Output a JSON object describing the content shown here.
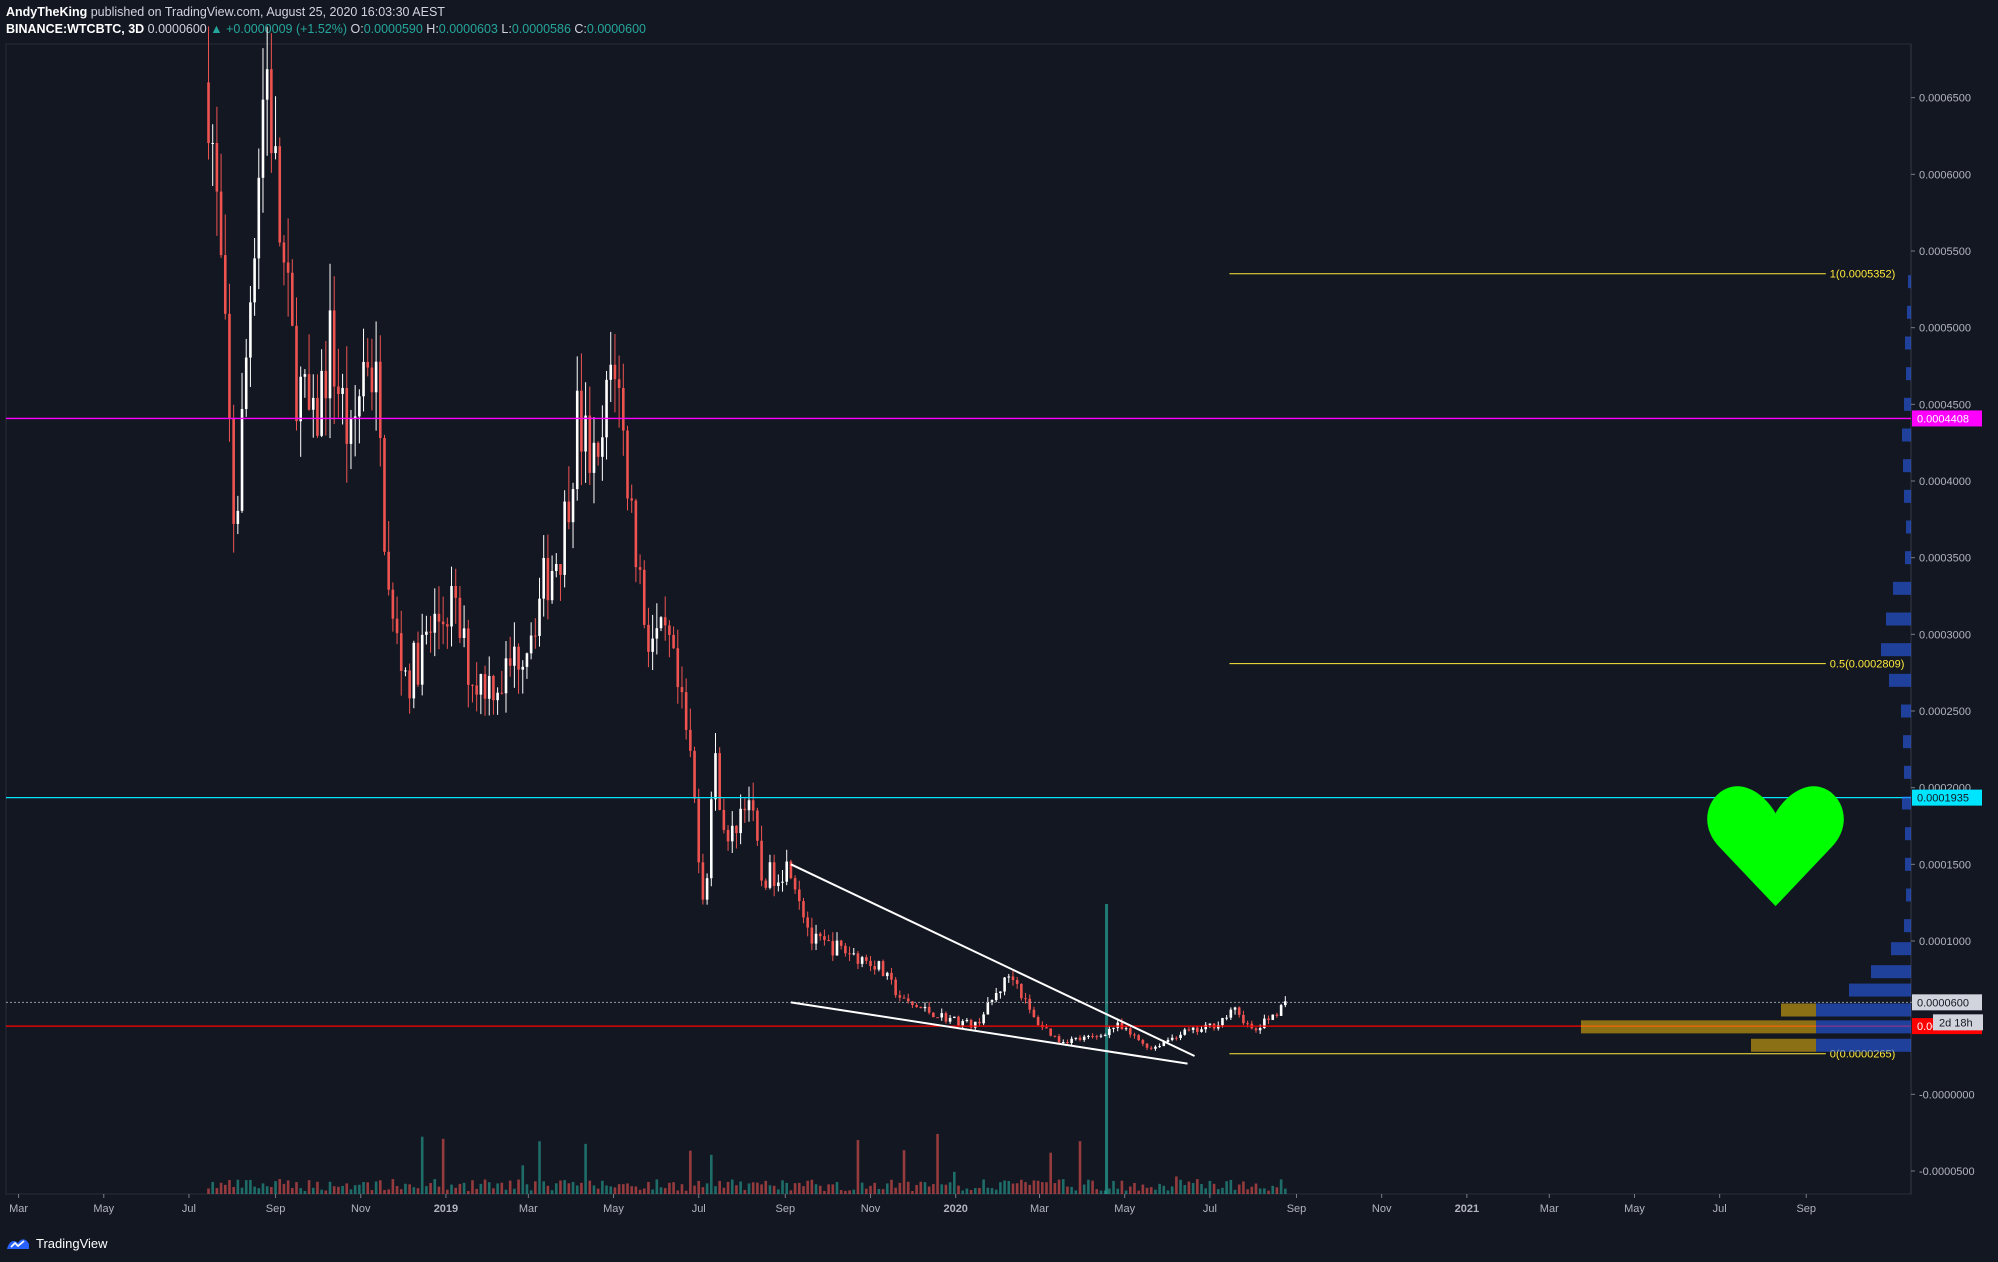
{
  "header": {
    "author": "AndyTheKing",
    "published": "published on TradingView.com, August 25, 2020 16:03:30 AEST",
    "symbol": "BINANCE:WTCBTC, 3D",
    "last": "0.0000600",
    "change": "▲ +0.0000009 (+1.52%)",
    "o_label": "O:",
    "o_value": "0.0000590",
    "h_label": "H:",
    "h_value": "0.0000603",
    "l_label": "L:",
    "l_value": "0.0000586",
    "c_label": "C:",
    "c_value": "0.0000600"
  },
  "footer": {
    "brand": "TradingView",
    "logo_icon": "tradingview-logo-icon"
  },
  "colors": {
    "background": "#131722",
    "up": "#ffffff",
    "down": "#ef5350",
    "volume_up": "#26a69a",
    "volume_down": "#ef5350",
    "magenta_level": "#ff00ff",
    "cyan_level": "#00e5ff",
    "red_level": "#ff0000",
    "fib": "#ffeb3b",
    "heart": "#00ff00"
  },
  "chart_data": {
    "type": "candlestick",
    "title": "",
    "xlabel": "",
    "ylabel": "",
    "x_ticks": [
      "Mar",
      "May",
      "Jul",
      "Sep",
      "Nov",
      "2019",
      "Mar",
      "May",
      "Jul",
      "Sep",
      "Nov",
      "2020",
      "Mar",
      "May",
      "Jul",
      "Sep",
      "Nov",
      "2021",
      "Mar",
      "May",
      "Jul",
      "Sep"
    ],
    "y_ticks": [
      "0.0006500",
      "0.0006000",
      "0.0005500",
      "0.0005000",
      "0.0004500",
      "0.0004000",
      "0.0003500",
      "0.0003000",
      "0.0002500",
      "0.0002000",
      "0.0001500",
      "0.0001000",
      "0.0000600",
      "-0.0000000",
      "-0.0000500"
    ],
    "ylim": [
      -6.5e-05,
      0.000685
    ],
    "price_path": [
      [
        "2018-07-15",
        0.00066
      ],
      [
        "2018-07-25",
        0.00052
      ],
      [
        "2018-08-03",
        0.00036
      ],
      [
        "2018-08-15",
        0.00054
      ],
      [
        "2018-08-25",
        0.00068
      ],
      [
        "2018-09-05",
        0.00055
      ],
      [
        "2018-09-15",
        0.00047
      ],
      [
        "2018-09-28",
        0.00043
      ],
      [
        "2018-10-10",
        0.00049
      ],
      [
        "2018-10-25",
        0.00042
      ],
      [
        "2018-11-05",
        0.00049
      ],
      [
        "2018-11-12",
        0.00046
      ],
      [
        "2018-11-22",
        0.00031
      ],
      [
        "2018-12-05",
        0.00027
      ],
      [
        "2018-12-20",
        0.0003
      ],
      [
        "2019-01-05",
        0.00032
      ],
      [
        "2019-01-20",
        0.00027
      ],
      [
        "2019-02-10",
        0.00027
      ],
      [
        "2019-03-01",
        0.0003
      ],
      [
        "2019-03-15",
        0.00034
      ],
      [
        "2019-03-25",
        0.00036
      ],
      [
        "2019-04-05",
        0.00044
      ],
      [
        "2019-04-20",
        0.0004
      ],
      [
        "2019-05-01",
        0.00049
      ],
      [
        "2019-05-10",
        0.00041
      ],
      [
        "2019-05-25",
        0.0003
      ],
      [
        "2019-06-10",
        0.00029
      ],
      [
        "2019-06-25",
        0.00022
      ],
      [
        "2019-07-05",
        0.00012
      ],
      [
        "2019-07-12",
        0.00022
      ],
      [
        "2019-07-22",
        0.00016
      ],
      [
        "2019-08-05",
        0.0002
      ],
      [
        "2019-08-15",
        0.00014
      ],
      [
        "2019-09-05",
        0.00015
      ],
      [
        "2019-09-20",
        0.0001
      ],
      [
        "2019-10-10",
        9.5e-05
      ],
      [
        "2019-11-05",
        8.5e-05
      ],
      [
        "2019-11-25",
        6e-05
      ],
      [
        "2019-12-25",
        5e-05
      ],
      [
        "2020-01-15",
        4.5e-05
      ],
      [
        "2020-02-10",
        8e-05
      ],
      [
        "2020-02-25",
        5e-05
      ],
      [
        "2020-03-15",
        3.5e-05
      ],
      [
        "2020-04-10",
        3.7e-05
      ],
      [
        "2020-04-25",
        4.5e-05
      ],
      [
        "2020-05-20",
        3e-05
      ],
      [
        "2020-06-10",
        4e-05
      ],
      [
        "2020-06-25",
        4.2e-05
      ],
      [
        "2020-07-05",
        4.6e-05
      ],
      [
        "2020-07-20",
        5.5e-05
      ],
      [
        "2020-08-01",
        4e-05
      ],
      [
        "2020-08-15",
        5.2e-05
      ],
      [
        "2020-08-25",
        6e-05
      ]
    ],
    "levels": [
      {
        "price": 0.0004408,
        "label": "0.0004408",
        "color": "#ff00ff"
      },
      {
        "price": 0.0001935,
        "label": "0.0001935",
        "color": "#00e5ff"
      },
      {
        "price": 4.45e-05,
        "label": "0.0000445",
        "color": "#ff0000"
      },
      {
        "price": 6e-05,
        "label": "0.0000600",
        "color": "#9598a1"
      }
    ],
    "fib_levels": [
      {
        "price": 0.0005352,
        "label": "1(0.0005352)"
      },
      {
        "price": 0.0002809,
        "label": "0.5(0.0002809)"
      },
      {
        "price": 2.65e-05,
        "label": "0(0.0000265)"
      }
    ],
    "fib_range": {
      "start": "2020-07-15",
      "end": "2021-09-15"
    },
    "wedge": {
      "upper": [
        [
          "2019-09-05",
          0.00015
        ],
        [
          "2020-06-20",
          2.5e-05
        ]
      ],
      "lower": [
        [
          "2019-09-05",
          6e-05
        ],
        [
          "2020-06-15",
          2e-05
        ]
      ]
    },
    "countdown": "2d 18h",
    "annotation": {
      "type": "heart",
      "price": 0.00017,
      "date": "2021-08-10"
    },
    "volume_profile": [
      [
        0.00053,
        0.03
      ],
      [
        0.00051,
        0.04
      ],
      [
        0.00049,
        0.06
      ],
      [
        0.00047,
        0.05
      ],
      [
        0.00045,
        0.07
      ],
      [
        0.00043,
        0.09
      ],
      [
        0.00041,
        0.08
      ],
      [
        0.00039,
        0.07
      ],
      [
        0.00037,
        0.05
      ],
      [
        0.00035,
        0.06
      ],
      [
        0.00033,
        0.18
      ],
      [
        0.00031,
        0.25
      ],
      [
        0.00029,
        0.3
      ],
      [
        0.00027,
        0.22
      ],
      [
        0.00025,
        0.1
      ],
      [
        0.00023,
        0.08
      ],
      [
        0.00021,
        0.07
      ],
      [
        0.00019,
        0.09
      ],
      [
        0.00017,
        0.06
      ],
      [
        0.00015,
        0.06
      ],
      [
        0.00013,
        0.05
      ],
      [
        0.00011,
        0.07
      ],
      [
        9.5e-05,
        0.2
      ],
      [
        8e-05,
        0.4
      ],
      [
        6.8e-05,
        0.62
      ],
      [
        5.5e-05,
        1.3
      ],
      [
        4.4e-05,
        3.3
      ],
      [
        3.2e-05,
        1.6
      ]
    ]
  }
}
